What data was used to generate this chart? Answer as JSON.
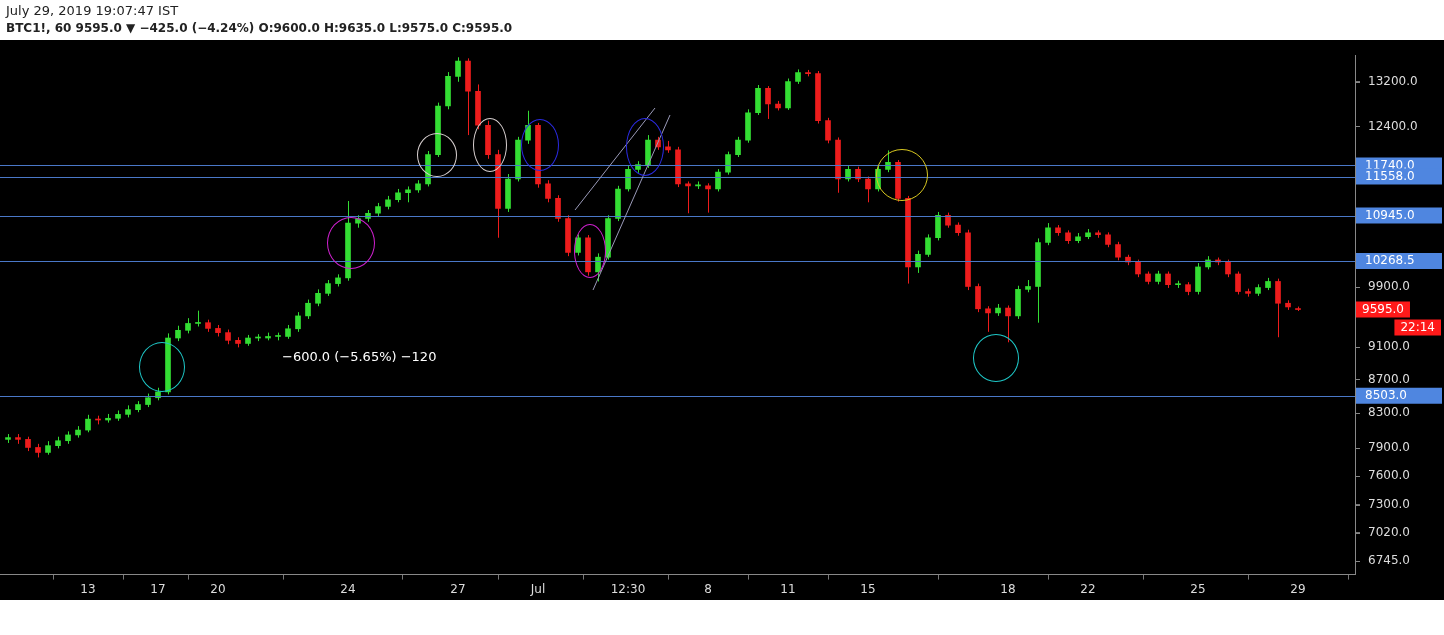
{
  "chart_data": {
    "type": "candlestick",
    "title": "July 29, 2019 19:07:47 IST",
    "subtitle": "BTC1!, 60  9595.0 ▼ −425.0 (−4.24%) O:9600.0 H:9635.0 L:9575.0 C:9595.0",
    "categories": [
      null,
      null,
      null,
      null,
      null,
      null,
      null,
      null,
      "13",
      null,
      null,
      null,
      null,
      null,
      null,
      "17",
      null,
      null,
      null,
      null,
      null,
      "20",
      null,
      null,
      null,
      null,
      null,
      null,
      null,
      null,
      null,
      null,
      null,
      null,
      "24",
      null,
      null,
      null,
      null,
      null,
      null,
      null,
      null,
      null,
      null,
      "27",
      null,
      null,
      null,
      null,
      null,
      null,
      null,
      "Jul",
      null,
      null,
      null,
      null,
      null,
      null,
      null,
      null,
      "12:30",
      null,
      null,
      null,
      null,
      null,
      null,
      null,
      "8",
      null,
      null,
      null,
      null,
      null,
      null,
      null,
      "11",
      null,
      null,
      null,
      null,
      null,
      null,
      null,
      "15",
      null,
      null,
      null,
      null,
      null,
      null,
      null,
      null,
      null,
      null,
      null,
      null,
      null,
      "18",
      null,
      null,
      null,
      null,
      null,
      null,
      null,
      "22",
      null,
      null,
      null,
      null,
      null,
      null,
      null,
      null,
      null,
      null,
      "25",
      null,
      null,
      null,
      null,
      null,
      null,
      null,
      null,
      null,
      "29"
    ],
    "ohlc": [
      [
        8000,
        8060,
        7960,
        8020
      ],
      [
        8020,
        8060,
        7950,
        8000
      ],
      [
        8000,
        8030,
        7870,
        7910
      ],
      [
        7910,
        7950,
        7800,
        7855
      ],
      [
        7855,
        7980,
        7830,
        7930
      ],
      [
        7930,
        8030,
        7900,
        7985
      ],
      [
        7985,
        8090,
        7950,
        8050
      ],
      [
        8050,
        8150,
        8020,
        8105
      ],
      [
        8105,
        8280,
        8080,
        8230
      ],
      [
        8230,
        8270,
        8170,
        8220
      ],
      [
        8220,
        8290,
        8190,
        8240
      ],
      [
        8240,
        8330,
        8210,
        8285
      ],
      [
        8285,
        8390,
        8250,
        8340
      ],
      [
        8340,
        8440,
        8310,
        8400
      ],
      [
        8400,
        8530,
        8370,
        8480
      ],
      [
        8480,
        8600,
        8450,
        8550
      ],
      [
        8550,
        9280,
        8520,
        9220
      ],
      [
        9220,
        9380,
        9180,
        9320
      ],
      [
        9320,
        9480,
        9280,
        9410
      ],
      [
        9410,
        9580,
        9370,
        9420
      ],
      [
        9420,
        9460,
        9300,
        9345
      ],
      [
        9345,
        9390,
        9240,
        9290
      ],
      [
        9290,
        9330,
        9140,
        9190
      ],
      [
        9190,
        9230,
        9100,
        9150
      ],
      [
        9150,
        9260,
        9120,
        9220
      ],
      [
        9220,
        9270,
        9180,
        9220
      ],
      [
        9220,
        9290,
        9190,
        9240
      ],
      [
        9240,
        9290,
        9190,
        9240
      ],
      [
        9240,
        9390,
        9210,
        9340
      ],
      [
        9340,
        9560,
        9300,
        9510
      ],
      [
        9510,
        9730,
        9470,
        9680
      ],
      [
        9680,
        9870,
        9640,
        9815
      ],
      [
        9815,
        10000,
        9780,
        9950
      ],
      [
        9950,
        10080,
        9910,
        10030
      ],
      [
        10030,
        11170,
        9990,
        10830
      ],
      [
        10830,
        10950,
        10760,
        10900
      ],
      [
        10900,
        11030,
        10850,
        10980
      ],
      [
        10980,
        11140,
        10930,
        11085
      ],
      [
        11085,
        11250,
        11040,
        11190
      ],
      [
        11190,
        11360,
        11150,
        11300
      ],
      [
        11300,
        11400,
        11150,
        11345
      ],
      [
        11345,
        11500,
        11300,
        11440
      ],
      [
        11440,
        11980,
        11400,
        11920
      ],
      [
        11920,
        12820,
        11880,
        12760
      ],
      [
        12760,
        13380,
        12700,
        13300
      ],
      [
        13300,
        13660,
        13200,
        13590
      ],
      [
        13590,
        13640,
        12250,
        13025
      ],
      [
        13025,
        13150,
        12350,
        12420
      ],
      [
        12420,
        12500,
        11850,
        11920
      ],
      [
        11920,
        12000,
        10610,
        11055
      ],
      [
        11055,
        11600,
        11000,
        11520
      ],
      [
        11520,
        12220,
        11480,
        12165
      ],
      [
        12165,
        12675,
        12100,
        12420
      ],
      [
        12420,
        12460,
        11380,
        11440
      ],
      [
        11440,
        11500,
        11150,
        11210
      ],
      [
        11210,
        11260,
        10850,
        10900
      ],
      [
        10900,
        10950,
        10340,
        10395
      ],
      [
        10395,
        10660,
        10350,
        10610
      ],
      [
        10610,
        10650,
        10060,
        10115
      ],
      [
        10115,
        10380,
        9980,
        10325
      ],
      [
        10325,
        10950,
        10290,
        10900
      ],
      [
        10900,
        11410,
        10860,
        11360
      ],
      [
        11360,
        11730,
        11320,
        11675
      ],
      [
        11675,
        11810,
        11620,
        11755
      ],
      [
        11755,
        12250,
        11700,
        12165
      ],
      [
        12165,
        12220,
        12000,
        12050
      ],
      [
        12050,
        12150,
        11950,
        12000
      ],
      [
        12000,
        12050,
        11390,
        11440
      ],
      [
        11440,
        11480,
        10980,
        11410
      ],
      [
        11410,
        11480,
        11360,
        11410
      ],
      [
        11410,
        11450,
        10990,
        11360
      ],
      [
        11360,
        11680,
        11320,
        11630
      ],
      [
        11630,
        11970,
        11590,
        11920
      ],
      [
        11920,
        12220,
        11880,
        12165
      ],
      [
        12165,
        12700,
        12120,
        12640
      ],
      [
        12640,
        13140,
        12600,
        13080
      ],
      [
        13080,
        13120,
        12530,
        12795
      ],
      [
        12795,
        12850,
        12680,
        12725
      ],
      [
        12725,
        13260,
        12690,
        13205
      ],
      [
        13205,
        13430,
        13160,
        13370
      ],
      [
        13370,
        13420,
        13300,
        13350
      ],
      [
        13350,
        13400,
        12450,
        12500
      ],
      [
        12500,
        12550,
        12110,
        12165
      ],
      [
        12165,
        12210,
        11300,
        11520
      ],
      [
        11520,
        11730,
        11480,
        11675
      ],
      [
        11675,
        11720,
        11470,
        11520
      ],
      [
        11520,
        11560,
        11150,
        11360
      ],
      [
        11360,
        11730,
        11320,
        11675
      ],
      [
        11675,
        11990,
        11630,
        11790
      ],
      [
        11790,
        11830,
        11160,
        11210
      ],
      [
        11210,
        11250,
        9950,
        10185
      ],
      [
        10185,
        10420,
        10100,
        10365
      ],
      [
        10365,
        10660,
        10330,
        10610
      ],
      [
        10610,
        11000,
        10570,
        10950
      ],
      [
        10950,
        10990,
        10760,
        10800
      ],
      [
        10800,
        10840,
        10640,
        10685
      ],
      [
        10685,
        10730,
        9860,
        9910
      ],
      [
        9910,
        9950,
        9560,
        9605
      ],
      [
        9605,
        9640,
        9300,
        9550
      ],
      [
        9550,
        9670,
        9510,
        9615
      ],
      [
        9615,
        9650,
        9165,
        9510
      ],
      [
        9510,
        9920,
        9470,
        9870
      ],
      [
        9870,
        10000,
        9830,
        9910
      ],
      [
        9910,
        10600,
        9420,
        10540
      ],
      [
        10540,
        10830,
        10500,
        10760
      ],
      [
        10760,
        10800,
        10640,
        10685
      ],
      [
        10685,
        10720,
        10520,
        10565
      ],
      [
        10565,
        10680,
        10530,
        10625
      ],
      [
        10625,
        10740,
        10590,
        10685
      ],
      [
        10685,
        10720,
        10610,
        10655
      ],
      [
        10655,
        10690,
        10470,
        10510
      ],
      [
        10510,
        10550,
        10280,
        10325
      ],
      [
        10325,
        10360,
        10210,
        10255
      ],
      [
        10255,
        10290,
        10040,
        10085
      ],
      [
        10085,
        10120,
        9940,
        9980
      ],
      [
        9980,
        10130,
        9940,
        10085
      ],
      [
        10085,
        10120,
        9890,
        9935
      ],
      [
        9935,
        9990,
        9890,
        9935
      ],
      [
        9935,
        9970,
        9790,
        9840
      ],
      [
        9840,
        10240,
        9800,
        10185
      ],
      [
        10185,
        10340,
        10150,
        10285
      ],
      [
        10285,
        10320,
        10210,
        10255
      ],
      [
        10255,
        10290,
        10040,
        10085
      ],
      [
        10085,
        10120,
        9800,
        9840
      ],
      [
        9840,
        9880,
        9770,
        9815
      ],
      [
        9815,
        9940,
        9780,
        9895
      ],
      [
        9895,
        10030,
        9860,
        9980
      ],
      [
        9980,
        10020,
        9230,
        9680
      ],
      [
        9680,
        9720,
        9590,
        9630
      ],
      [
        9600,
        9635,
        9575,
        9595
      ]
    ],
    "colors": [
      "#33dd33",
      "#ee1c1c",
      "#ee1c1c",
      "#ee1c1c",
      "#33dd33",
      "#33dd33",
      "#33dd33",
      "#33dd33",
      "#33dd33",
      "#ee1c1c",
      "#33dd33",
      "#33dd33",
      "#33dd33",
      "#33dd33",
      "#33dd33",
      "#33dd33",
      "#33dd33",
      "#33dd33",
      "#33dd33",
      "#33dd33",
      "#ee1c1c",
      "#ee1c1c",
      "#ee1c1c",
      "#ee1c1c",
      "#33dd33",
      "#33dd33",
      "#33dd33",
      "#33dd33",
      "#33dd33",
      "#33dd33",
      "#33dd33",
      "#33dd33",
      "#33dd33",
      "#33dd33",
      "#33dd33",
      "#33dd33",
      "#33dd33",
      "#33dd33",
      "#33dd33",
      "#33dd33",
      "#33dd33",
      "#33dd33",
      "#33dd33",
      "#33dd33",
      "#33dd33",
      "#33dd33",
      "#ee1c1c",
      "#ee1c1c",
      "#ee1c1c",
      "#ee1c1c",
      "#33dd33",
      "#33dd33",
      "#33dd33",
      "#ee1c1c",
      "#ee1c1c",
      "#ee1c1c",
      "#ee1c1c",
      "#33dd33",
      "#ee1c1c",
      "#33dd33",
      "#33dd33",
      "#33dd33",
      "#33dd33",
      "#33dd33",
      "#33dd33",
      "#ee1c1c",
      "#ee1c1c",
      "#ee1c1c",
      "#ee1c1c",
      "#33dd33",
      "#ee1c1c",
      "#33dd33",
      "#33dd33",
      "#33dd33",
      "#33dd33",
      "#33dd33",
      "#ee1c1c",
      "#ee1c1c",
      "#33dd33",
      "#33dd33",
      "#ee1c1c",
      "#ee1c1c",
      "#ee1c1c",
      "#ee1c1c",
      "#33dd33",
      "#ee1c1c",
      "#ee1c1c",
      "#33dd33",
      "#33dd33",
      "#ee1c1c",
      "#ee1c1c",
      "#33dd33",
      "#33dd33",
      "#33dd33",
      "#ee1c1c",
      "#ee1c1c",
      "#ee1c1c",
      "#ee1c1c",
      "#ee1c1c",
      "#33dd33",
      "#ee1c1c",
      "#33dd33",
      "#33dd33",
      "#33dd33",
      "#33dd33",
      "#ee1c1c",
      "#ee1c1c",
      "#33dd33",
      "#33dd33",
      "#ee1c1c",
      "#ee1c1c",
      "#ee1c1c",
      "#ee1c1c",
      "#ee1c1c",
      "#ee1c1c",
      "#33dd33",
      "#ee1c1c",
      "#33dd33",
      "#ee1c1c",
      "#33dd33",
      "#33dd33",
      "#ee1c1c",
      "#ee1c1c",
      "#ee1c1c",
      "#ee1c1c",
      "#33dd33",
      "#33dd33",
      "#ee1c1c",
      "#ee1c1c",
      "#ee1c1c"
    ],
    "ylim": [
      6620,
      13700
    ],
    "log": "y",
    "yticks": [
      {
        "value": 6745,
        "label": "6745.0"
      },
      {
        "value": 7020,
        "label": "7020.0"
      },
      {
        "value": 7300,
        "label": "7300.0"
      },
      {
        "value": 7600,
        "label": "7600.0"
      },
      {
        "value": 7900,
        "label": "7900.0"
      },
      {
        "value": 8300,
        "label": "8300.0"
      },
      {
        "value": 8700,
        "label": "8700.0"
      },
      {
        "value": 9100,
        "label": "9100.0"
      },
      {
        "value": 9900,
        "label": "9900.0"
      },
      {
        "value": 12400,
        "label": "12400.0"
      },
      {
        "value": 13200,
        "label": "13200.0"
      }
    ],
    "ref_lines": [
      {
        "axis": "y",
        "value": 11740,
        "label": "11740.0",
        "color": "#4a78c8"
      },
      {
        "axis": "y",
        "value": 11558,
        "label": "11558.0",
        "color": "#4a78c8"
      },
      {
        "axis": "y",
        "value": 10945,
        "label": "10945.0",
        "color": "#4a78c8"
      },
      {
        "axis": "y",
        "value": 10268.5,
        "label": "10268.5",
        "color": "#4a78c8"
      },
      {
        "axis": "y",
        "value": 8503,
        "label": "8503.0",
        "color": "#4a78c8"
      }
    ],
    "annotations": [
      "9595.0",
      "22:14",
      "−600.0 (−5.65%) −120"
    ],
    "grid": false,
    "legend": false
  }
}
